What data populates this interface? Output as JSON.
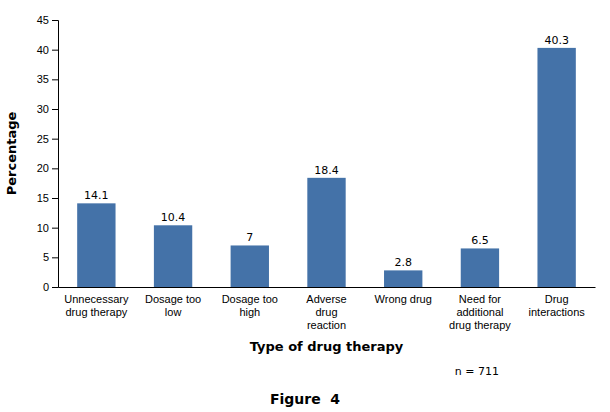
{
  "chart_data": {
    "type": "bar",
    "categories": [
      "Unnecessary\ndrug therapy",
      "Dosage too\nlow",
      "Dosage too\nhigh",
      "Adverse\ndrug\nreaction",
      "Wrong drug",
      "Need for\nadditional\ndrug therapy",
      "Drug\ninteractions"
    ],
    "values": [
      14.1,
      10.4,
      7.0,
      18.4,
      2.8,
      6.5,
      40.3
    ],
    "color": "#4472a8",
    "ylim": [
      0,
      45
    ],
    "yticks": [
      0,
      5,
      10,
      15,
      20,
      25,
      30,
      35,
      40,
      45
    ],
    "y_label": "Percentage",
    "x_label": "Type of drug therapy",
    "annotations": [
      "n = 711",
      "Figure  4"
    ],
    "data_labels": true,
    "grid": false
  }
}
